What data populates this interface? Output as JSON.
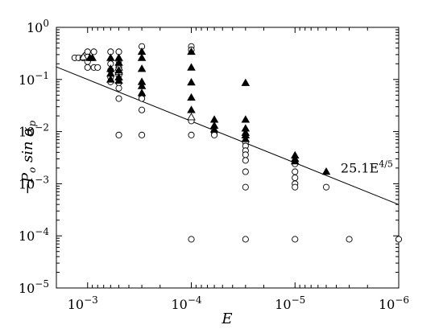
{
  "chart_data": {
    "type": "scatter",
    "xscale": "log",
    "yscale": "log",
    "x_reversed": true,
    "xlim": [
      0.002,
      1e-06
    ],
    "ylim": [
      1e-05,
      1
    ],
    "xlabel": "E",
    "ylabel": "−P_o sin α_p",
    "grid": false,
    "x_ticks": [
      {
        "value": 0.001,
        "base": "10",
        "exp": "−3"
      },
      {
        "value": 0.0001,
        "base": "10",
        "exp": "−4"
      },
      {
        "value": 1e-05,
        "base": "10",
        "exp": "−5"
      },
      {
        "value": 1e-06,
        "base": "10",
        "exp": "−6"
      }
    ],
    "y_ticks": [
      {
        "value": 1,
        "base": "10",
        "exp": "0"
      },
      {
        "value": 0.1,
        "base": "10",
        "exp": "−1"
      },
      {
        "value": 0.01,
        "base": "10",
        "exp": "−2"
      },
      {
        "value": 0.001,
        "base": "10",
        "exp": "−3"
      },
      {
        "value": 0.0001,
        "base": "10",
        "exp": "−4"
      },
      {
        "value": 1e-05,
        "base": "10",
        "exp": "−5"
      }
    ],
    "series": [
      {
        "marker": "open-circle",
        "points": [
          [
            0.00133,
            0.26
          ],
          [
            0.00122,
            0.26
          ],
          [
            0.00111,
            0.26
          ],
          [
            0.00103,
            0.3
          ],
          [
            0.001,
            0.34
          ],
          [
            0.001,
            0.27
          ],
          [
            0.001,
            0.22
          ],
          [
            0.001,
            0.17
          ],
          [
            0.00087,
            0.34
          ],
          [
            0.00087,
            0.17
          ],
          [
            0.0008,
            0.17
          ],
          [
            0.0006,
            0.34
          ],
          [
            0.0006,
            0.2
          ],
          [
            0.0006,
            0.15
          ],
          [
            0.0006,
            0.11
          ],
          [
            0.0006,
            0.09
          ],
          [
            0.0005,
            0.34
          ],
          [
            0.0005,
            0.23
          ],
          [
            0.0005,
            0.17
          ],
          [
            0.0005,
            0.12
          ],
          [
            0.0005,
            0.086
          ],
          [
            0.0005,
            0.068
          ],
          [
            0.0005,
            0.043
          ],
          [
            0.0005,
            0.0086
          ],
          [
            0.0003,
            0.43
          ],
          [
            0.0003,
            0.05
          ],
          [
            0.0003,
            0.043
          ],
          [
            0.0003,
            0.026
          ],
          [
            0.0003,
            0.0086
          ],
          [
            0.0001,
            0.43
          ],
          [
            0.0001,
            0.37
          ],
          [
            0.0001,
            0.016
          ],
          [
            0.0001,
            0.0086
          ],
          [
            0.0001,
            8.6e-05
          ],
          [
            6e-05,
            0.0095
          ],
          [
            6e-05,
            0.0086
          ],
          [
            3e-05,
            0.0062
          ],
          [
            3e-05,
            0.0053
          ],
          [
            3e-05,
            0.0043
          ],
          [
            3e-05,
            0.0036
          ],
          [
            3e-05,
            0.0028
          ],
          [
            3e-05,
            0.0017
          ],
          [
            3e-05,
            0.00086
          ],
          [
            3e-05,
            8.6e-05
          ],
          [
            1e-05,
            0.0024
          ],
          [
            1e-05,
            0.0017
          ],
          [
            1e-05,
            0.0013
          ],
          [
            1e-05,
            0.001
          ],
          [
            1e-05,
            0.00086
          ],
          [
            1e-05,
            8.6e-05
          ],
          [
            5e-06,
            0.00086
          ],
          [
            3e-06,
            8.6e-05
          ],
          [
            1e-06,
            8.6e-05
          ]
        ]
      },
      {
        "marker": "open-triangle",
        "points": [
          [
            0.0011,
            0.27
          ],
          [
            0.0005,
            0.17
          ],
          [
            0.0005,
            0.14
          ],
          [
            0.0001,
            0.019
          ]
        ]
      },
      {
        "marker": "filled-triangle",
        "points": [
          [
            0.00095,
            0.26
          ],
          [
            0.0009,
            0.26
          ],
          [
            0.0006,
            0.26
          ],
          [
            0.0006,
            0.16
          ],
          [
            0.0006,
            0.13
          ],
          [
            0.0006,
            0.1
          ],
          [
            0.0005,
            0.26
          ],
          [
            0.0005,
            0.21
          ],
          [
            0.0005,
            0.15
          ],
          [
            0.0005,
            0.11
          ],
          [
            0.0005,
            0.095
          ],
          [
            0.0003,
            0.34
          ],
          [
            0.0003,
            0.26
          ],
          [
            0.0003,
            0.16
          ],
          [
            0.0003,
            0.09
          ],
          [
            0.0003,
            0.075
          ],
          [
            0.0003,
            0.055
          ],
          [
            0.0001,
            0.34
          ],
          [
            0.0001,
            0.17
          ],
          [
            0.0001,
            0.088
          ],
          [
            0.0001,
            0.045
          ],
          [
            0.0001,
            0.026
          ],
          [
            6e-05,
            0.017
          ],
          [
            6e-05,
            0.013
          ],
          [
            6e-05,
            0.011
          ],
          [
            3e-05,
            0.086
          ],
          [
            3e-05,
            0.017
          ],
          [
            3e-05,
            0.0115
          ],
          [
            3e-05,
            0.0095
          ],
          [
            3e-05,
            0.0085
          ],
          [
            3e-05,
            0.0072
          ],
          [
            1e-05,
            0.0035
          ],
          [
            1e-05,
            0.003
          ],
          [
            1e-05,
            0.0027
          ],
          [
            5e-06,
            0.0017
          ]
        ]
      }
    ],
    "fit_line": {
      "coefficient": 25.1,
      "exponent": 0.8,
      "label_base": "25.1E",
      "label_exp": "4/5"
    }
  }
}
